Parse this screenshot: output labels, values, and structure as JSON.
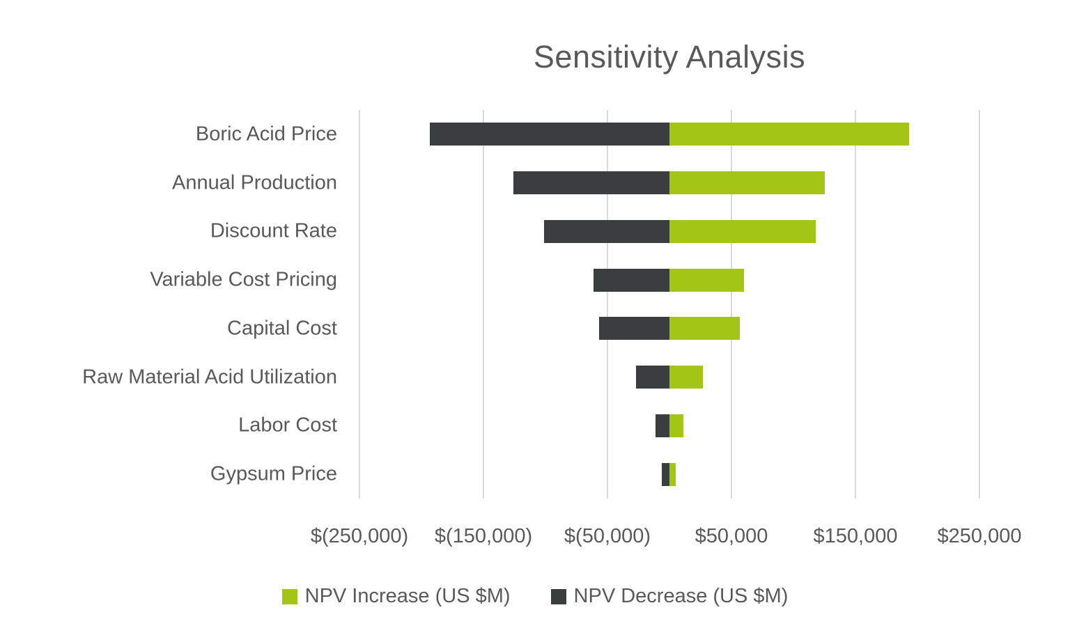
{
  "chart_data": {
    "type": "bar",
    "subtype": "tornado",
    "orientation": "horizontal",
    "title": "Sensitivity Analysis",
    "categories": [
      "Boric Acid Price",
      "Annual Production",
      "Discount Rate",
      "Variable Cost Pricing",
      "Capital Cost",
      "Raw Material Acid Utilization",
      "Labor Cost",
      "Gypsum Price"
    ],
    "series": [
      {
        "name": "NPV Increase (US $M)",
        "color": "#a2c516",
        "values": [
          193000,
          125000,
          118000,
          60000,
          57000,
          27000,
          11000,
          5000
        ]
      },
      {
        "name": "NPV Decrease (US $M)",
        "color": "#3b3e3e",
        "values": [
          -193000,
          -126000,
          -101000,
          -61000,
          -57000,
          -27000,
          -11000,
          -6000
        ]
      }
    ],
    "xlim": [
      -250000,
      250000
    ],
    "x_ticks": [
      {
        "value": -250000,
        "label": "$(250,000)"
      },
      {
        "value": -150000,
        "label": "$(150,000)"
      },
      {
        "value": -50000,
        "label": "$(50,000)"
      },
      {
        "value": 50000,
        "label": "$50,000"
      },
      {
        "value": 150000,
        "label": "$150,000"
      },
      {
        "value": 250000,
        "label": "$250,000"
      }
    ],
    "grid": "vertical",
    "legend_position": "bottom",
    "colors": {
      "text": "#595959",
      "gridline": "#d9d9d9",
      "background": "#ffffff"
    }
  }
}
